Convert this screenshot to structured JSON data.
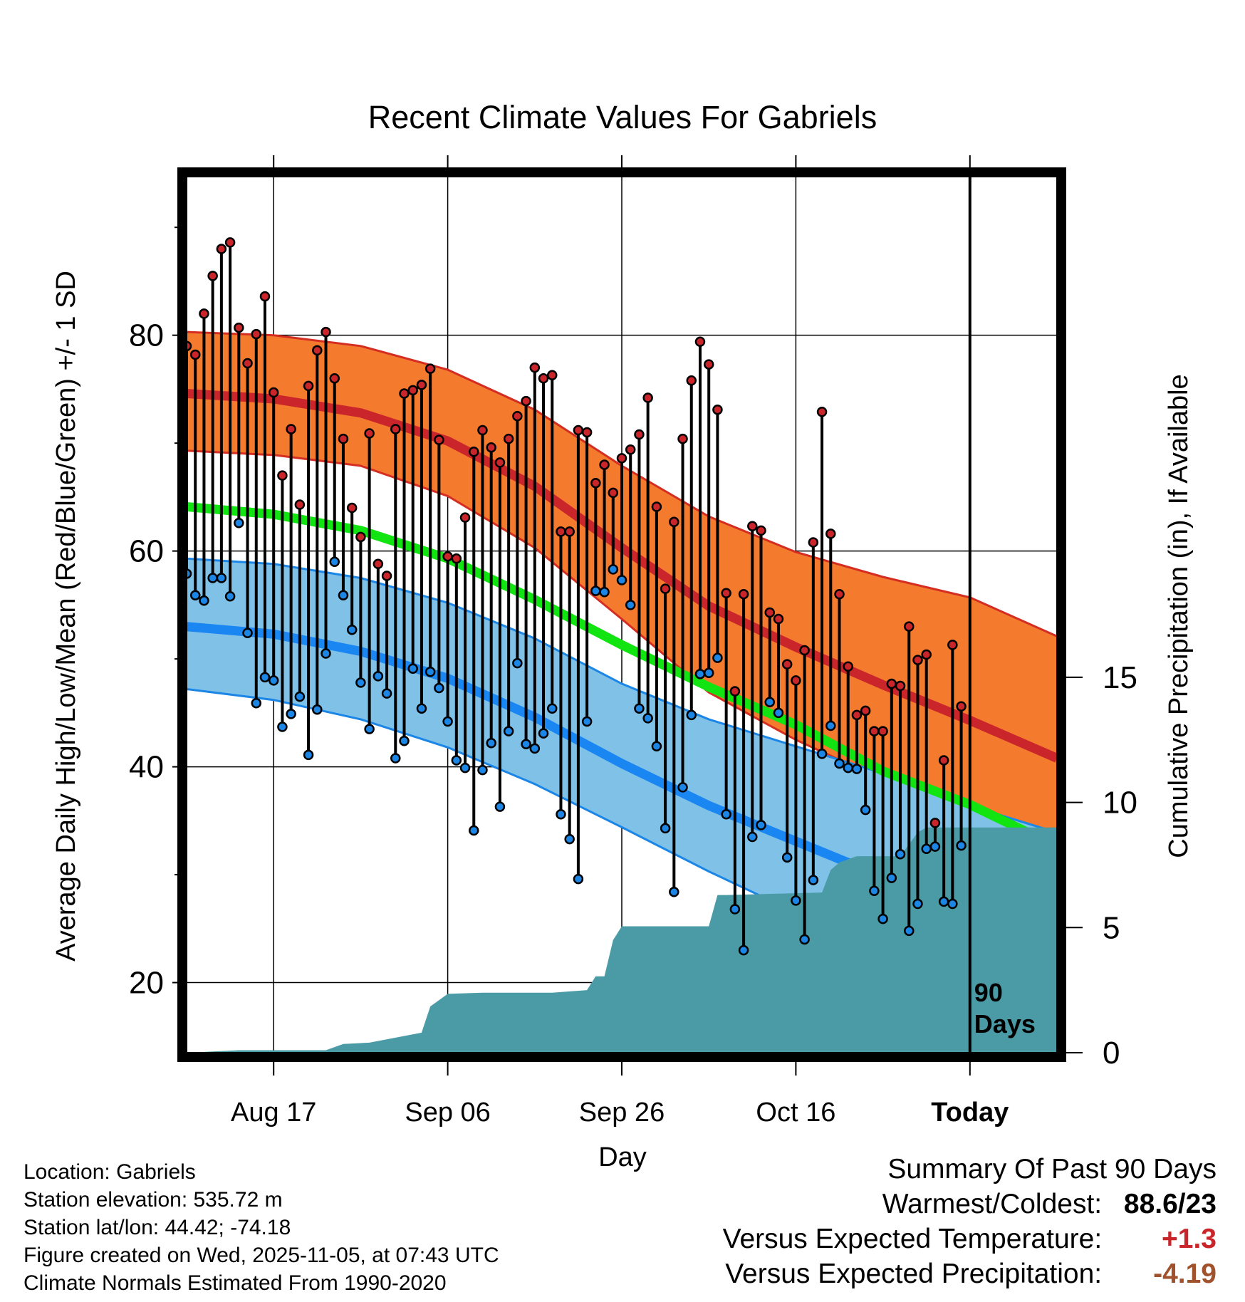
{
  "chart_data": {
    "type": "line",
    "title": "Recent Climate Values For Gabriels",
    "xlabel": "Day",
    "ylabel": "Average Daily High/Low/Mean (Red/Blue/Green) +/- 1 SD",
    "ylabel_right": "Cumulative Precipitation (in), If Available",
    "xlim": [
      0,
      100
    ],
    "ylim": [
      13.5,
      94.7
    ],
    "ylim_right": [
      0,
      35
    ],
    "x_ticks": [
      {
        "x": 10,
        "label": "Aug 17"
      },
      {
        "x": 30,
        "label": "Sep 06"
      },
      {
        "x": 50,
        "label": "Sep 26"
      },
      {
        "x": 70,
        "label": "Oct 16"
      },
      {
        "x": 90,
        "label": "Today"
      }
    ],
    "y_ticks": [
      20,
      40,
      60,
      80
    ],
    "y_ticks_right": [
      0,
      5,
      10,
      15
    ],
    "today_x": 90,
    "today_label_line1": "90",
    "today_label_line2": "Days",
    "colors": {
      "high_band": "#f47a2e",
      "high_edge": "#d42e23",
      "high_mean": "#c9252a",
      "low_band": "#80c1e8",
      "low_edge": "#1b86e6",
      "low_mean": "#1a86f2",
      "mean_line": "#11e411",
      "precip": "#4a9ba5",
      "high_marker": "#c9252a",
      "low_marker": "#1b86e6"
    },
    "normals": {
      "x": [
        0,
        10,
        20,
        30,
        40,
        50,
        60,
        70,
        80,
        90,
        100
      ],
      "high_mean": [
        74.6,
        74.1,
        72.8,
        70.2,
        66.0,
        60.3,
        54.9,
        51.1,
        47.6,
        44.3,
        40.8
      ],
      "high_upper": [
        80.3,
        80.0,
        79.0,
        76.8,
        73.1,
        67.9,
        63.2,
        59.9,
        57.6,
        55.7,
        52.1
      ],
      "high_lower": [
        69.3,
        68.9,
        67.9,
        65.1,
        60.3,
        53.7,
        46.9,
        42.5,
        38.8,
        35.9,
        31.9
      ],
      "low_mean": [
        53.0,
        52.3,
        50.7,
        48.2,
        44.6,
        40.3,
        36.4,
        33.1,
        29.8,
        26.5,
        23.0
      ],
      "low_upper": [
        59.3,
        58.8,
        57.5,
        55.2,
        51.9,
        47.7,
        44.4,
        41.9,
        39.4,
        36.4,
        33.9
      ],
      "low_lower": [
        47.2,
        46.2,
        44.4,
        41.8,
        38.4,
        34.4,
        30.3,
        26.5,
        22.8,
        19.5,
        16.2
      ],
      "daily_mean": [
        64.1,
        63.4,
        61.9,
        59.3,
        55.5,
        51.3,
        47.4,
        43.9,
        39.6,
        36.5,
        32.6
      ]
    },
    "precip_cumulative": {
      "x": [
        0,
        6,
        16,
        18,
        21,
        27,
        28,
        30,
        34,
        42,
        46,
        47,
        48,
        49,
        50,
        60,
        61,
        62,
        73,
        74,
        75,
        77,
        78,
        82,
        84,
        85,
        88,
        90,
        100
      ],
      "values": [
        0,
        0.1,
        0.1,
        0.35,
        0.4,
        0.8,
        1.85,
        2.35,
        2.4,
        2.4,
        2.5,
        3.05,
        3.05,
        4.5,
        5.05,
        5.05,
        6.3,
        6.3,
        6.4,
        7.3,
        7.6,
        7.85,
        7.85,
        7.85,
        8.8,
        9.0,
        9.0,
        9.0,
        9.0
      ]
    },
    "observed_high": [
      79.0,
      78.2,
      82.0,
      85.5,
      88.0,
      88.6,
      80.7,
      77.4,
      80.1,
      83.6,
      74.7,
      67.0,
      71.3,
      64.3,
      75.3,
      78.6,
      80.3,
      76.0,
      70.4,
      64.0,
      61.3,
      70.9,
      58.8,
      57.7,
      71.3,
      74.6,
      74.9,
      75.4,
      76.9,
      70.3,
      59.5,
      59.3,
      63.1,
      69.2,
      71.2,
      69.6,
      68.2,
      70.4,
      72.5,
      73.9,
      77.0,
      76.0,
      76.3,
      61.8,
      61.8,
      71.2,
      71.0,
      66.3,
      68.0,
      65.4,
      68.6,
      69.4,
      70.8,
      74.2,
      64.1,
      56.5,
      62.7,
      70.4,
      75.8,
      79.4,
      77.3,
      73.1,
      56.1,
      47.0,
      56.0,
      62.3,
      61.9,
      54.3,
      53.7,
      49.5,
      48.0,
      50.8,
      60.8,
      72.9,
      61.6,
      56.0,
      49.3,
      44.8,
      45.2,
      43.3,
      43.3,
      47.7,
      47.5,
      53.0,
      49.9,
      50.4,
      34.8,
      40.6,
      51.3,
      45.6
    ],
    "observed_low": [
      57.9,
      55.9,
      55.4,
      57.5,
      57.5,
      55.8,
      62.6,
      52.4,
      45.9,
      48.3,
      48.0,
      43.7,
      44.9,
      46.5,
      41.1,
      45.3,
      50.5,
      59.0,
      55.9,
      52.7,
      47.8,
      43.5,
      48.4,
      46.8,
      40.8,
      42.4,
      49.1,
      45.4,
      48.8,
      47.3,
      44.2,
      40.6,
      39.9,
      34.1,
      39.7,
      42.2,
      36.3,
      43.3,
      49.6,
      42.1,
      41.7,
      43.1,
      45.4,
      35.6,
      33.3,
      29.6,
      44.2,
      56.3,
      56.2,
      58.3,
      57.3,
      55.0,
      45.4,
      44.5,
      41.9,
      34.3,
      28.4,
      38.1,
      44.8,
      48.6,
      48.7,
      50.1,
      35.6,
      26.8,
      23.0,
      33.5,
      34.6,
      46.0,
      45.0,
      31.6,
      27.6,
      24.0,
      29.5,
      41.2,
      43.8,
      40.3,
      39.9,
      39.8,
      36.0,
      28.5,
      25.9,
      29.7,
      31.9,
      24.8,
      27.3,
      32.4,
      32.6,
      27.5,
      27.3,
      32.7
    ]
  },
  "footer": {
    "location": "Location: Gabriels",
    "elevation": "Station elevation: 535.72 m",
    "latlon": "Station lat/lon: 44.42; -74.18",
    "created": "Figure created on Wed, 2025-11-05, at 07:43 UTC",
    "normals": "Climate Normals Estimated From 1990-2020"
  },
  "summary": {
    "title": "Summary Of Past 90 Days",
    "warmest_label": "Warmest/Coldest:",
    "warmest_value": "88.6/23",
    "temp_label": "Versus Expected Temperature:",
    "temp_value": "+1.3",
    "temp_color": "#c9252a",
    "precip_label": "Versus Expected Precipitation:",
    "precip_value": "-4.19",
    "precip_color": "#a0522d"
  }
}
